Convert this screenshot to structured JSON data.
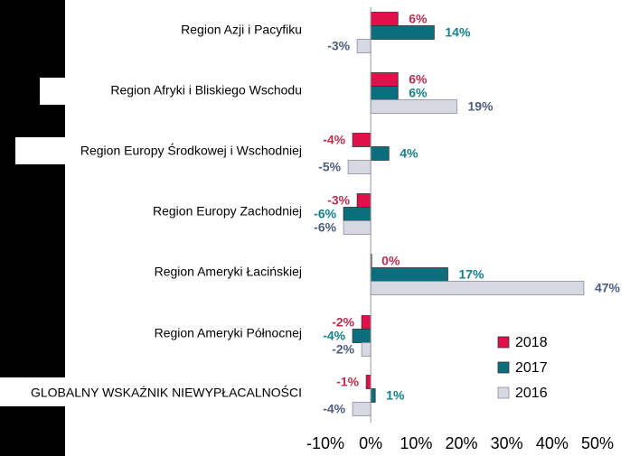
{
  "chart_data": {
    "type": "bar",
    "orientation": "horizontal",
    "categories": [
      "Region Azji i Pacyfiku",
      "Region Afryki i Bliskiego Wschodu",
      "Region Europy Środkowej i Wschodniej",
      "Region Europy Zachodniej",
      "Region Ameryki Łacińskiej",
      "Region Ameryki Północnej",
      "GLOBALNY WSKAŹNIK NIEWYPŁACALNOŚCI"
    ],
    "series": [
      {
        "name": "2018",
        "color": "#e0114a",
        "label_color": "#b5304f",
        "values": [
          6,
          6,
          -4,
          -3,
          0,
          -2,
          -1
        ],
        "labels": [
          "6%",
          "6%",
          "-4%",
          "-3%",
          "0%",
          "-2%",
          "-1%"
        ]
      },
      {
        "name": "2017",
        "color": "#0b6e7c",
        "label_color": "#14808c",
        "values": [
          14,
          6,
          4,
          -6,
          17,
          -4,
          1
        ],
        "labels": [
          "14%",
          "6%",
          "4%",
          "-6%",
          "17%",
          "-4%",
          "1%"
        ]
      },
      {
        "name": "2016",
        "color": "#d7d8e2",
        "label_color": "#4d5d80",
        "values": [
          -3,
          19,
          -5,
          -6,
          47,
          -2,
          -4
        ],
        "labels": [
          "-3%",
          "19%",
          "-5%",
          "-6%",
          "47%",
          "-2%",
          "-4%"
        ]
      }
    ],
    "xlim": [
      -10,
      50
    ],
    "xticks": [
      -10,
      0,
      10,
      20,
      30,
      40,
      50
    ],
    "xtick_labels": [
      "-10%",
      "0%",
      "10%",
      "20%",
      "30%",
      "40%",
      "50%"
    ],
    "legend_order": [
      "2018",
      "2017",
      "2016"
    ],
    "legend_position": "bottom-right",
    "grid": false
  }
}
